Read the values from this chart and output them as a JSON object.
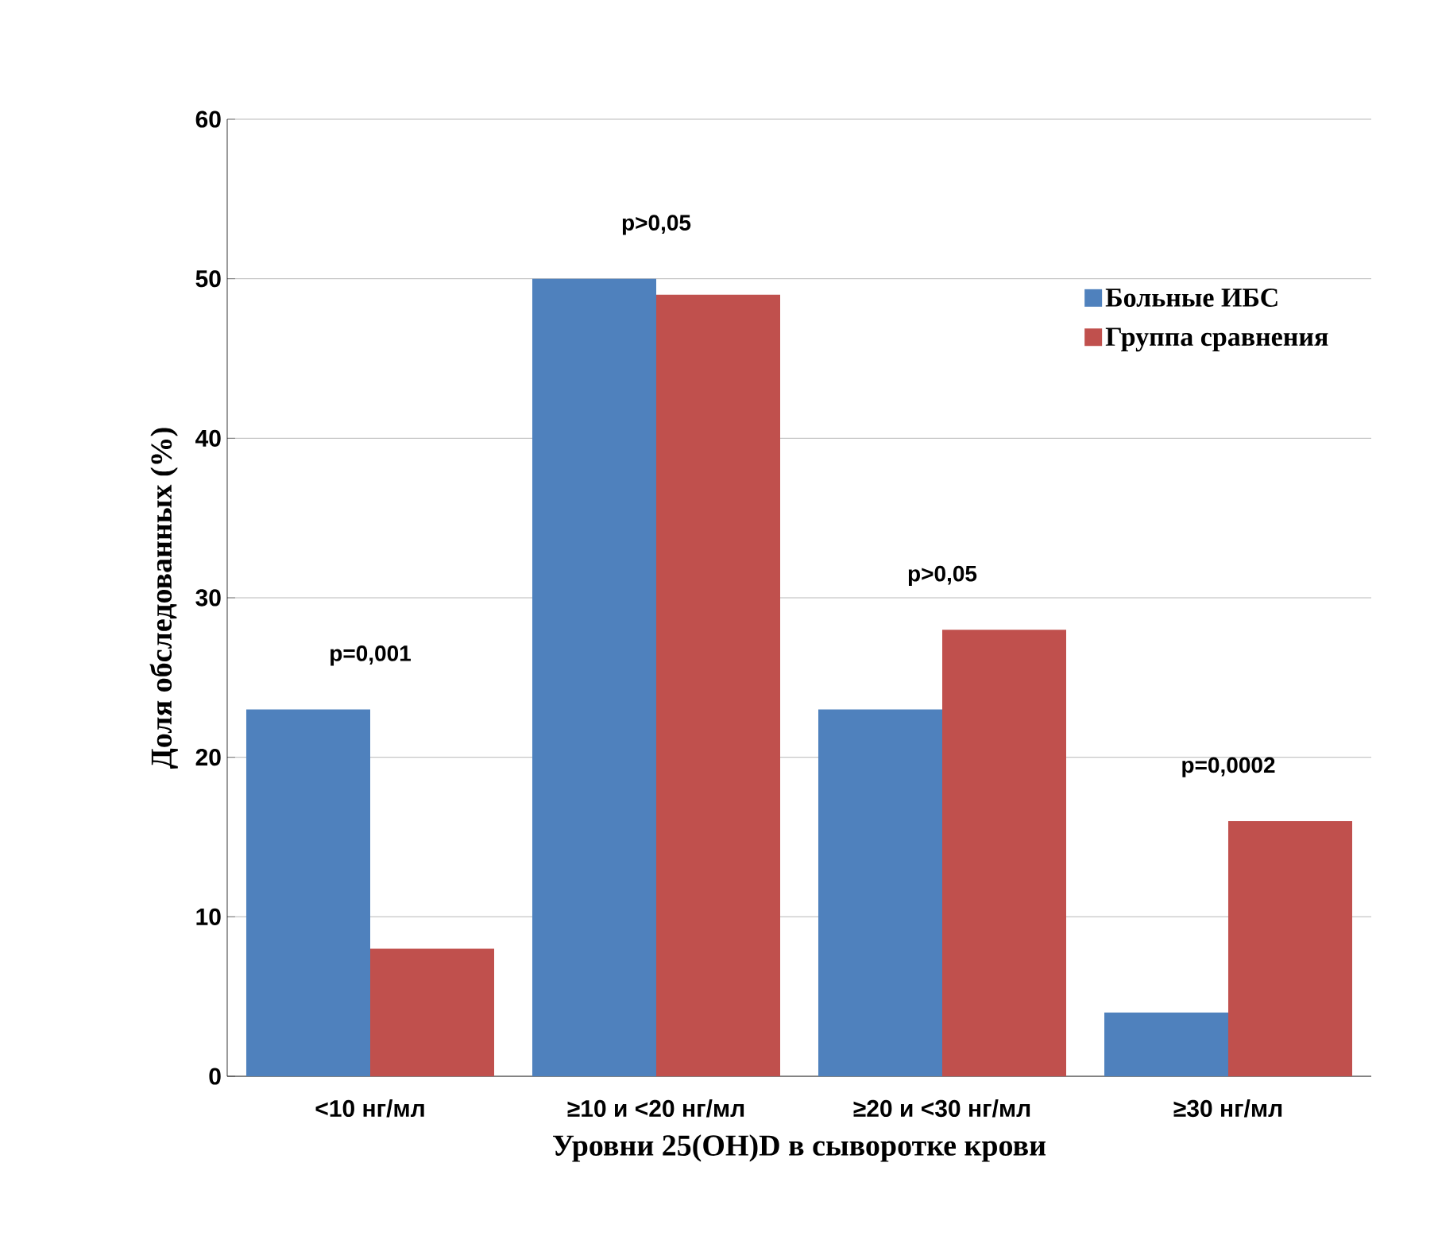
{
  "chart_data": {
    "type": "bar",
    "xlabel": "Уровни 25(OH)D в сыворотке крови",
    "ylabel": "Доля обследованных (%)",
    "categories": [
      "<10 нг/мл",
      "≥10 и <20 нг/мл",
      "≥20 и <30 нг/мл",
      "≥30 нг/мл"
    ],
    "series": [
      {
        "name": "Больные ИБС",
        "color": "#4f81bd",
        "values": [
          23,
          50,
          23,
          4
        ]
      },
      {
        "name": "Группа сравнения",
        "color": "#c0504d",
        "values": [
          8,
          49,
          28,
          16
        ]
      }
    ],
    "ylim": [
      0,
      60
    ],
    "yticks": [
      0,
      10,
      20,
      30,
      40,
      50,
      60
    ],
    "grid": "y",
    "legend": "top right",
    "annotations": [
      "p=0,001",
      "p>0,05",
      "p>0,05",
      "p=0,0002"
    ]
  }
}
